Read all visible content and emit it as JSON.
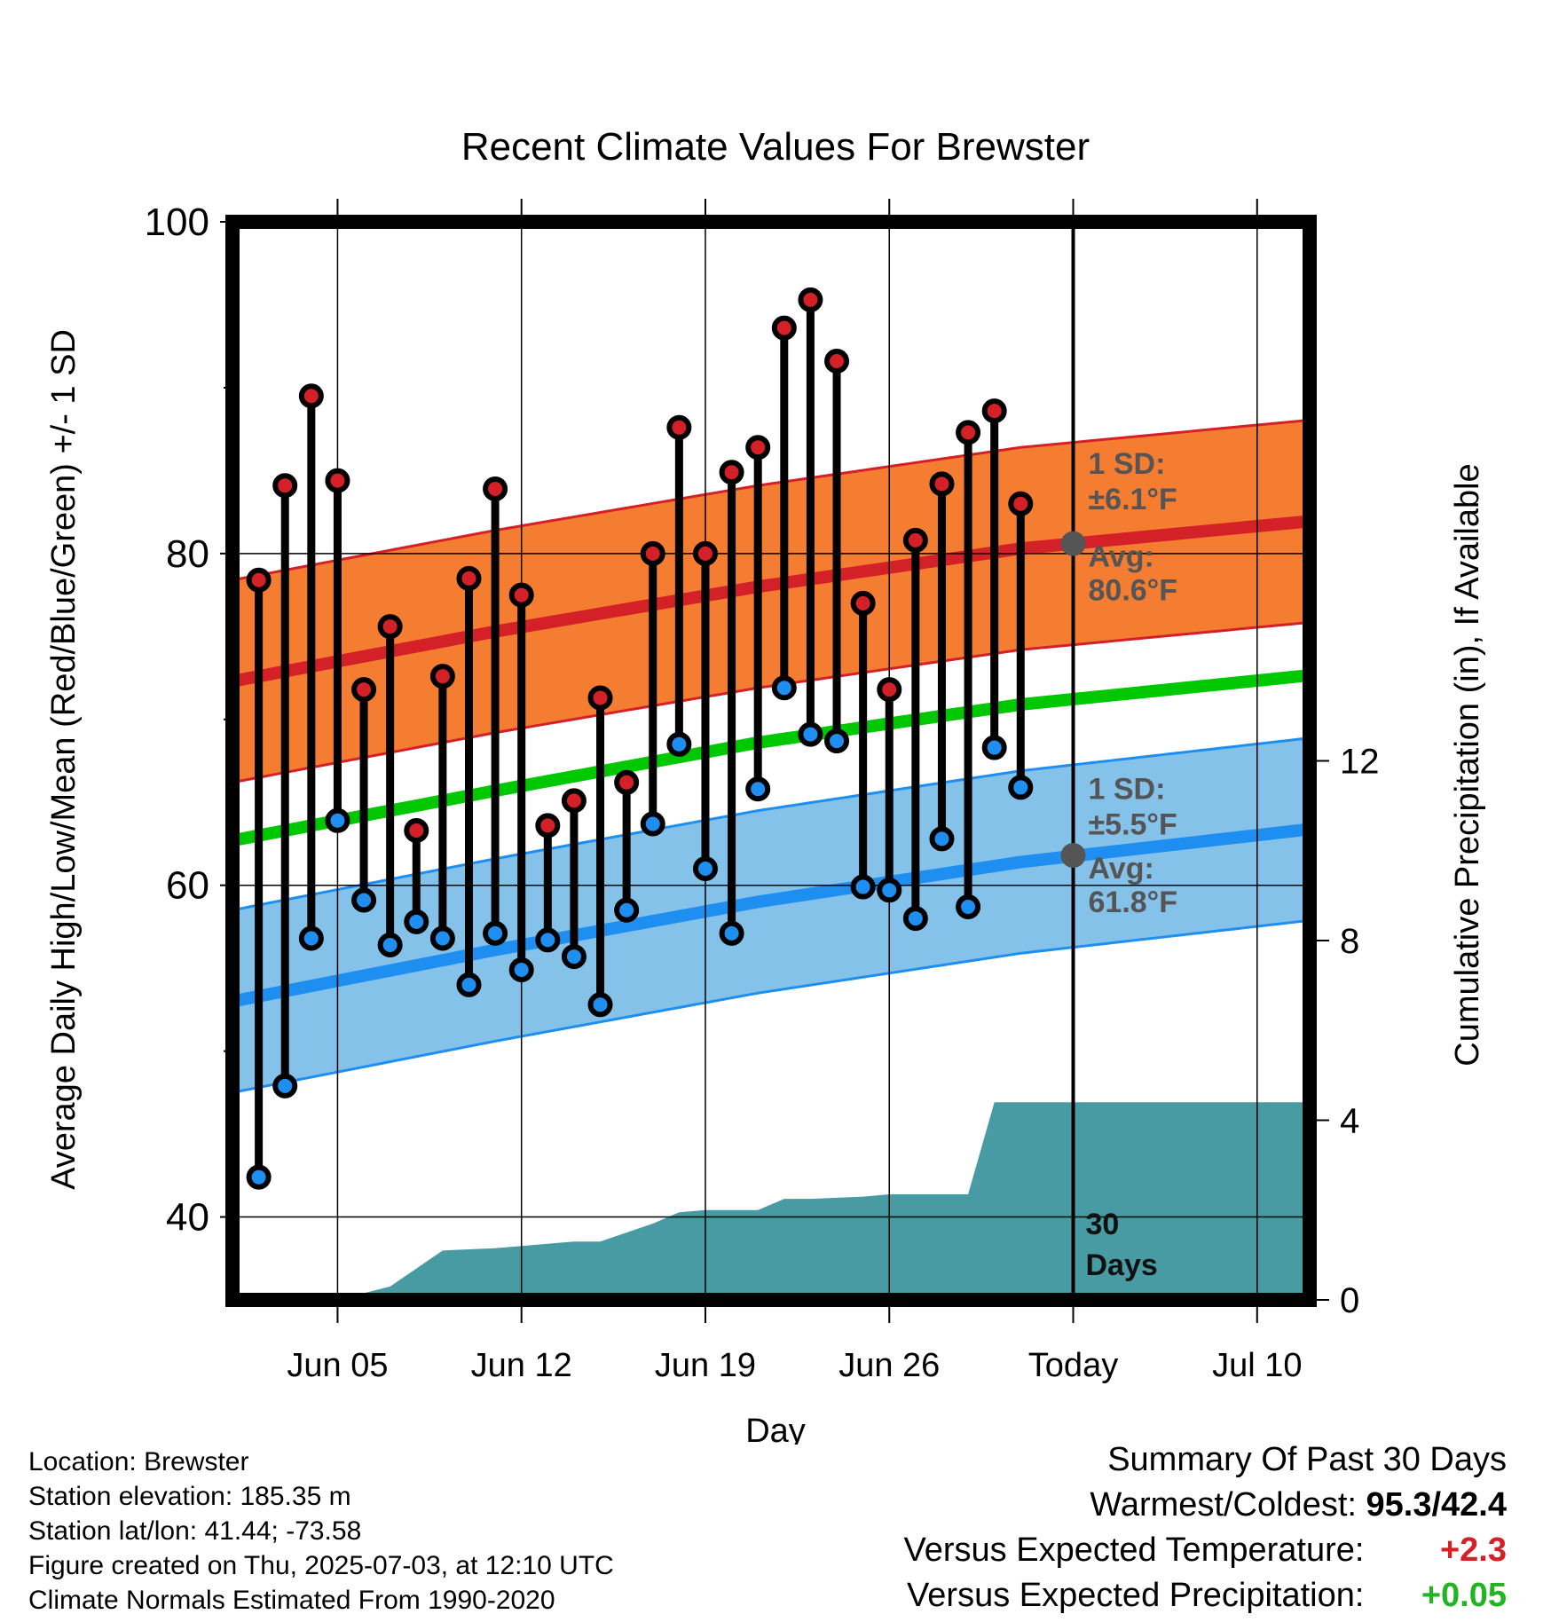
{
  "chart_data": {
    "type": "line",
    "title": "Recent Climate Values For Brewster",
    "xlabel": "Day",
    "ylabel_left": "Average Daily High/Low/Mean (Red/Blue/Green) +/- 1 SD",
    "ylabel_right": "Cumulative Precipitation (in), If Available",
    "x_range": [
      "2025-06-01",
      "2025-07-12"
    ],
    "ylim": [
      35,
      100
    ],
    "ylim_right": [
      0,
      24
    ],
    "x_ticks": [
      {
        "date": "2025-06-05",
        "label": "Jun 05"
      },
      {
        "date": "2025-06-12",
        "label": "Jun 12"
      },
      {
        "date": "2025-06-19",
        "label": "Jun 19"
      },
      {
        "date": "2025-06-26",
        "label": "Jun 26"
      },
      {
        "date": "2025-07-03",
        "label": "Today"
      },
      {
        "date": "2025-07-10",
        "label": "Jul 10"
      }
    ],
    "y_ticks": [
      "40",
      "60",
      "80",
      "100"
    ],
    "y_ticks_right": [
      "0",
      "4",
      "8",
      "12"
    ],
    "grid": true,
    "today": "2025-07-03",
    "days_label": [
      "30",
      "Days"
    ],
    "normals": {
      "dates": [
        "2025-06-01",
        "2025-06-11",
        "2025-06-21",
        "2025-07-01",
        "2025-07-11"
      ],
      "high_avg": [
        72.3,
        75.3,
        78.0,
        80.3,
        81.8
      ],
      "high_sd": 6.1,
      "low_avg": [
        53.0,
        56.1,
        59.0,
        61.4,
        63.2
      ],
      "low_sd": 5.5,
      "mean_avg": [
        62.7,
        65.7,
        68.6,
        70.9,
        72.5
      ]
    },
    "high_annotation": {
      "sd_title": "1 SD:",
      "sd_value": "±6.1°F",
      "avg_title": "Avg:",
      "avg_value": "80.6°F",
      "avg": 80.6
    },
    "low_annotation": {
      "sd_title": "1 SD:",
      "sd_value": "±5.5°F",
      "avg_title": "Avg:",
      "avg_value": "61.8°F",
      "avg": 61.8
    },
    "daily": [
      {
        "date": "2025-06-02",
        "high": 78.4,
        "low": 42.4
      },
      {
        "date": "2025-06-03",
        "high": 84.1,
        "low": 47.9
      },
      {
        "date": "2025-06-04",
        "high": 89.5,
        "low": 56.8
      },
      {
        "date": "2025-06-05",
        "high": 84.4,
        "low": 63.9
      },
      {
        "date": "2025-06-06",
        "high": 71.8,
        "low": 59.1
      },
      {
        "date": "2025-06-07",
        "high": 75.6,
        "low": 56.4
      },
      {
        "date": "2025-06-08",
        "high": 63.3,
        "low": 57.8
      },
      {
        "date": "2025-06-09",
        "high": 72.6,
        "low": 56.8
      },
      {
        "date": "2025-06-10",
        "high": 78.5,
        "low": 54.0
      },
      {
        "date": "2025-06-11",
        "high": 83.9,
        "low": 57.1
      },
      {
        "date": "2025-06-12",
        "high": 77.5,
        "low": 54.9
      },
      {
        "date": "2025-06-13",
        "high": 63.6,
        "low": 56.7
      },
      {
        "date": "2025-06-14",
        "high": 65.1,
        "low": 55.7
      },
      {
        "date": "2025-06-15",
        "high": 71.3,
        "low": 52.8
      },
      {
        "date": "2025-06-16",
        "high": 66.2,
        "low": 58.5
      },
      {
        "date": "2025-06-17",
        "high": 80.0,
        "low": 63.7
      },
      {
        "date": "2025-06-18",
        "high": 87.6,
        "low": 68.5
      },
      {
        "date": "2025-06-19",
        "high": 80.0,
        "low": 61.0
      },
      {
        "date": "2025-06-20",
        "high": 84.9,
        "low": 57.1
      },
      {
        "date": "2025-06-21",
        "high": 86.4,
        "low": 65.8
      },
      {
        "date": "2025-06-22",
        "high": 93.6,
        "low": 71.9
      },
      {
        "date": "2025-06-23",
        "high": 95.3,
        "low": 69.1
      },
      {
        "date": "2025-06-24",
        "high": 91.6,
        "low": 68.7
      },
      {
        "date": "2025-06-25",
        "high": 77.0,
        "low": 59.9
      },
      {
        "date": "2025-06-26",
        "high": 71.8,
        "low": 59.7
      },
      {
        "date": "2025-06-27",
        "high": 80.8,
        "low": 58.0
      },
      {
        "date": "2025-06-28",
        "high": 84.2,
        "low": 62.8
      },
      {
        "date": "2025-06-29",
        "high": 87.3,
        "low": 58.7
      },
      {
        "date": "2025-06-30",
        "high": 88.6,
        "low": 68.3
      },
      {
        "date": "2025-07-01",
        "high": 83.0,
        "low": 65.9
      }
    ],
    "precip_cumulative": {
      "dates": [
        "2025-06-05",
        "2025-06-06",
        "2025-06-07",
        "2025-06-09",
        "2025-06-11",
        "2025-06-12",
        "2025-06-14",
        "2025-06-15",
        "2025-06-17",
        "2025-06-18",
        "2025-06-19",
        "2025-06-21",
        "2025-06-22",
        "2025-06-23",
        "2025-06-25",
        "2025-06-26",
        "2025-06-29",
        "2025-06-30",
        "2025-07-12"
      ],
      "values": [
        0.0,
        0.15,
        0.3,
        1.1,
        1.15,
        1.2,
        1.3,
        1.3,
        1.7,
        1.95,
        2.0,
        2.0,
        2.25,
        2.25,
        2.3,
        2.35,
        2.35,
        4.4,
        4.4
      ]
    }
  },
  "footer": {
    "location": "Location: Brewster",
    "elevation": "Station elevation: 185.35 m",
    "latlon": "Station lat/lon: 41.44; -73.58",
    "created": "Figure created on Thu, 2025-07-03, at 12:10 UTC",
    "normals": "Climate Normals Estimated From 1990-2020"
  },
  "summary": {
    "title": "Summary Of Past 30 Days",
    "warmest_label": "Warmest/Coldest:",
    "warmest_value": "95.3/42.4",
    "temp_label": "Versus Expected Temperature:",
    "temp_value": "+2.3",
    "precip_label": "Versus Expected Precipitation:",
    "precip_value": "+0.05"
  },
  "colors": {
    "high_band": "#f57d32",
    "high_line": "#d42027",
    "low_band": "#85c2ea",
    "low_line": "#1e8ff0",
    "mean_line": "#00c800",
    "precip": "#489ba3",
    "high_marker": "#d42027",
    "low_marker": "#1e8ff0",
    "annotation": "#555555",
    "temp_value": "#d42027",
    "precip_value": "#22b522"
  }
}
